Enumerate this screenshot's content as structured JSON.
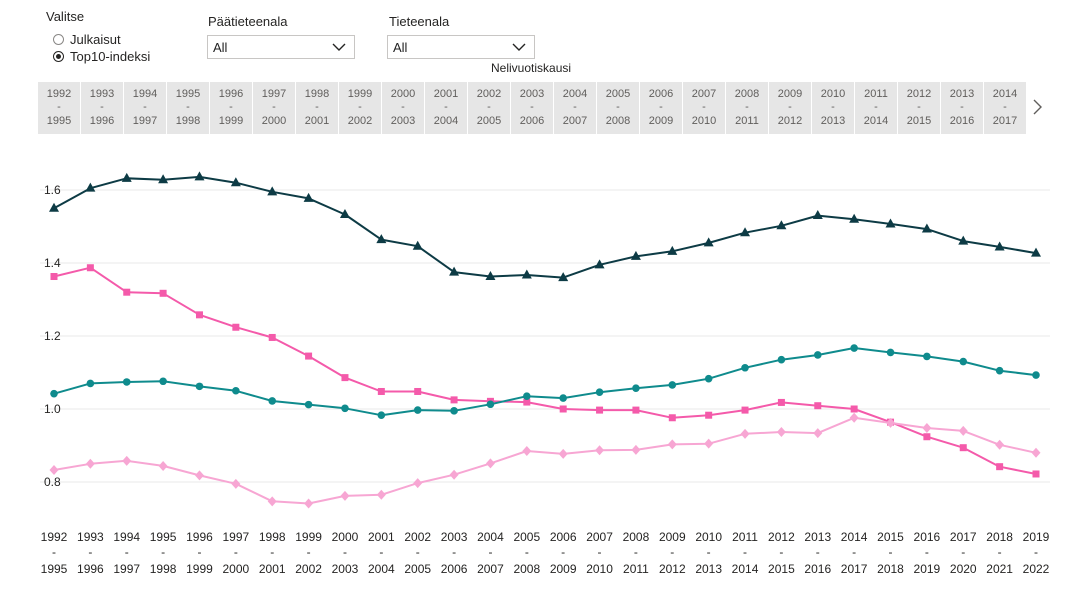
{
  "filters": {
    "valitse": {
      "title": "Valitse",
      "options": [
        {
          "label": "Julkaisut",
          "selected": false
        },
        {
          "label": "Top10-indeksi",
          "selected": true
        }
      ]
    },
    "paatieteenala": {
      "title": "Päätieteenala",
      "value": "All"
    },
    "tieteenala": {
      "title": "Tieteenala",
      "value": "All"
    }
  },
  "period_slicer": {
    "title": "Nelivuotiskausi",
    "tiles": [
      {
        "start": "1992",
        "sep": "-",
        "end": "1995"
      },
      {
        "start": "1993",
        "sep": "-",
        "end": "1996"
      },
      {
        "start": "1994",
        "sep": "-",
        "end": "1997"
      },
      {
        "start": "1995",
        "sep": "-",
        "end": "1998"
      },
      {
        "start": "1996",
        "sep": "-",
        "end": "1999"
      },
      {
        "start": "1997",
        "sep": "-",
        "end": "2000"
      },
      {
        "start": "1998",
        "sep": "-",
        "end": "2001"
      },
      {
        "start": "1999",
        "sep": "-",
        "end": "2002"
      },
      {
        "start": "2000",
        "sep": "-",
        "end": "2003"
      },
      {
        "start": "2001",
        "sep": "-",
        "end": "2004"
      },
      {
        "start": "2002",
        "sep": "-",
        "end": "2005"
      },
      {
        "start": "2003",
        "sep": "-",
        "end": "2006"
      },
      {
        "start": "2004",
        "sep": "-",
        "end": "2007"
      },
      {
        "start": "2005",
        "sep": "-",
        "end": "2008"
      },
      {
        "start": "2006",
        "sep": "-",
        "end": "2009"
      },
      {
        "start": "2007",
        "sep": "-",
        "end": "2010"
      },
      {
        "start": "2008",
        "sep": "-",
        "end": "2011"
      },
      {
        "start": "2009",
        "sep": "-",
        "end": "2012"
      },
      {
        "start": "2010",
        "sep": "-",
        "end": "2013"
      },
      {
        "start": "2011",
        "sep": "-",
        "end": "2014"
      },
      {
        "start": "2012",
        "sep": "-",
        "end": "2015"
      },
      {
        "start": "2013",
        "sep": "-",
        "end": "2016"
      },
      {
        "start": "2014",
        "sep": "-",
        "end": "2017"
      }
    ],
    "next_icon": "chevron-right-icon"
  },
  "chart_data": {
    "type": "line",
    "title": "",
    "xlabel": "",
    "ylabel": "",
    "ylim": [
      0.7,
      1.65
    ],
    "yticks": [
      0.8,
      1.0,
      1.2,
      1.4,
      1.6
    ],
    "ytick_labels": [
      "0.8",
      "1.0",
      "1.2",
      "1.4",
      "1.6"
    ],
    "grid": true,
    "x": [
      {
        "start": "1992",
        "sep": "-",
        "end": "1995"
      },
      {
        "start": "1993",
        "sep": "-",
        "end": "1996"
      },
      {
        "start": "1994",
        "sep": "-",
        "end": "1997"
      },
      {
        "start": "1995",
        "sep": "-",
        "end": "1998"
      },
      {
        "start": "1996",
        "sep": "-",
        "end": "1999"
      },
      {
        "start": "1997",
        "sep": "-",
        "end": "2000"
      },
      {
        "start": "1998",
        "sep": "-",
        "end": "2001"
      },
      {
        "start": "1999",
        "sep": "-",
        "end": "2002"
      },
      {
        "start": "2000",
        "sep": "-",
        "end": "2003"
      },
      {
        "start": "2001",
        "sep": "-",
        "end": "2004"
      },
      {
        "start": "2002",
        "sep": "-",
        "end": "2005"
      },
      {
        "start": "2003",
        "sep": "-",
        "end": "2006"
      },
      {
        "start": "2004",
        "sep": "-",
        "end": "2007"
      },
      {
        "start": "2005",
        "sep": "-",
        "end": "2008"
      },
      {
        "start": "2006",
        "sep": "-",
        "end": "2009"
      },
      {
        "start": "2007",
        "sep": "-",
        "end": "2010"
      },
      {
        "start": "2008",
        "sep": "-",
        "end": "2011"
      },
      {
        "start": "2009",
        "sep": "-",
        "end": "2012"
      },
      {
        "start": "2010",
        "sep": "-",
        "end": "2013"
      },
      {
        "start": "2011",
        "sep": "-",
        "end": "2014"
      },
      {
        "start": "2012",
        "sep": "-",
        "end": "2015"
      },
      {
        "start": "2013",
        "sep": "-",
        "end": "2016"
      },
      {
        "start": "2014",
        "sep": "-",
        "end": "2017"
      },
      {
        "start": "2015",
        "sep": "-",
        "end": "2018"
      },
      {
        "start": "2016",
        "sep": "-",
        "end": "2019"
      },
      {
        "start": "2017",
        "sep": "-",
        "end": "2020"
      },
      {
        "start": "2018",
        "sep": "-",
        "end": "2021"
      },
      {
        "start": "2019",
        "sep": "-",
        "end": "2022"
      }
    ],
    "series": [
      {
        "color": "#0d3b45",
        "marker": "triangle",
        "values": [
          1.55,
          1.605,
          1.632,
          1.628,
          1.636,
          1.62,
          1.595,
          1.577,
          1.533,
          1.464,
          1.446,
          1.375,
          1.363,
          1.367,
          1.36,
          1.395,
          1.418,
          1.432,
          1.455,
          1.483,
          1.502,
          1.53,
          1.52,
          1.507,
          1.493,
          1.46,
          1.444,
          1.427
        ]
      },
      {
        "color": "#f45aaa",
        "marker": "square",
        "values": [
          1.363,
          1.387,
          1.32,
          1.317,
          1.258,
          1.224,
          1.196,
          1.145,
          1.086,
          1.048,
          1.048,
          1.025,
          1.021,
          1.019,
          1.0,
          0.997,
          0.997,
          0.976,
          0.983,
          0.997,
          1.018,
          1.009,
          1.0,
          0.964,
          0.924,
          0.894,
          0.842,
          0.822
        ]
      },
      {
        "color": "#0f8b8d",
        "marker": "circle",
        "values": [
          1.042,
          1.07,
          1.074,
          1.076,
          1.062,
          1.05,
          1.022,
          1.012,
          1.002,
          0.983,
          0.997,
          0.995,
          1.013,
          1.035,
          1.03,
          1.046,
          1.057,
          1.066,
          1.083,
          1.113,
          1.135,
          1.148,
          1.167,
          1.155,
          1.144,
          1.13,
          1.105,
          1.093
        ]
      },
      {
        "color": "#f7a6d3",
        "marker": "diamond",
        "values": [
          0.833,
          0.85,
          0.858,
          0.844,
          0.818,
          0.795,
          0.747,
          0.741,
          0.762,
          0.765,
          0.797,
          0.82,
          0.851,
          0.885,
          0.877,
          0.887,
          0.888,
          0.903,
          0.905,
          0.932,
          0.937,
          0.934,
          0.976,
          0.962,
          0.948,
          0.94,
          0.902,
          0.88
        ]
      }
    ]
  }
}
